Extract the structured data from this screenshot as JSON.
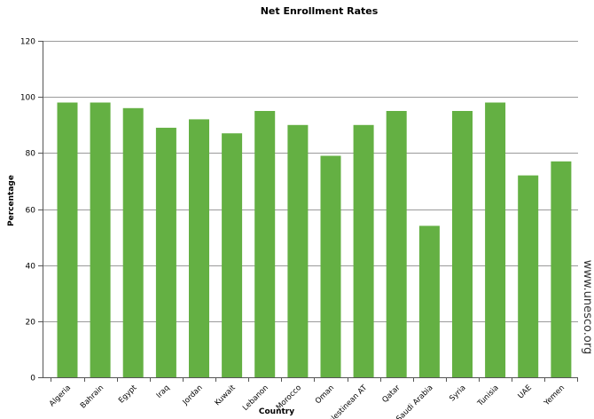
{
  "chart_data": {
    "type": "bar",
    "title": "Net Enrollment Rates",
    "xlabel": "Country",
    "ylabel": "Percentage",
    "ylim": [
      0,
      120
    ],
    "yticks": [
      0,
      20,
      40,
      60,
      80,
      100,
      120
    ],
    "grid": true,
    "bar_color": "#64b043",
    "categories": [
      "Algeria",
      "Bahrain",
      "Egypt",
      "Iraq",
      "Jordan",
      "Kuwait",
      "Lebanon",
      "Morocco",
      "Oman",
      "Palestinean AT",
      "Qatar",
      "Saudi Arabia",
      "Syria",
      "Tunisia",
      "UAE",
      "Yemen"
    ],
    "values": [
      98,
      98,
      96,
      89,
      92,
      87,
      95,
      90,
      79,
      90,
      95,
      54,
      95,
      98,
      72,
      77
    ],
    "source": "www.unesco.org"
  }
}
